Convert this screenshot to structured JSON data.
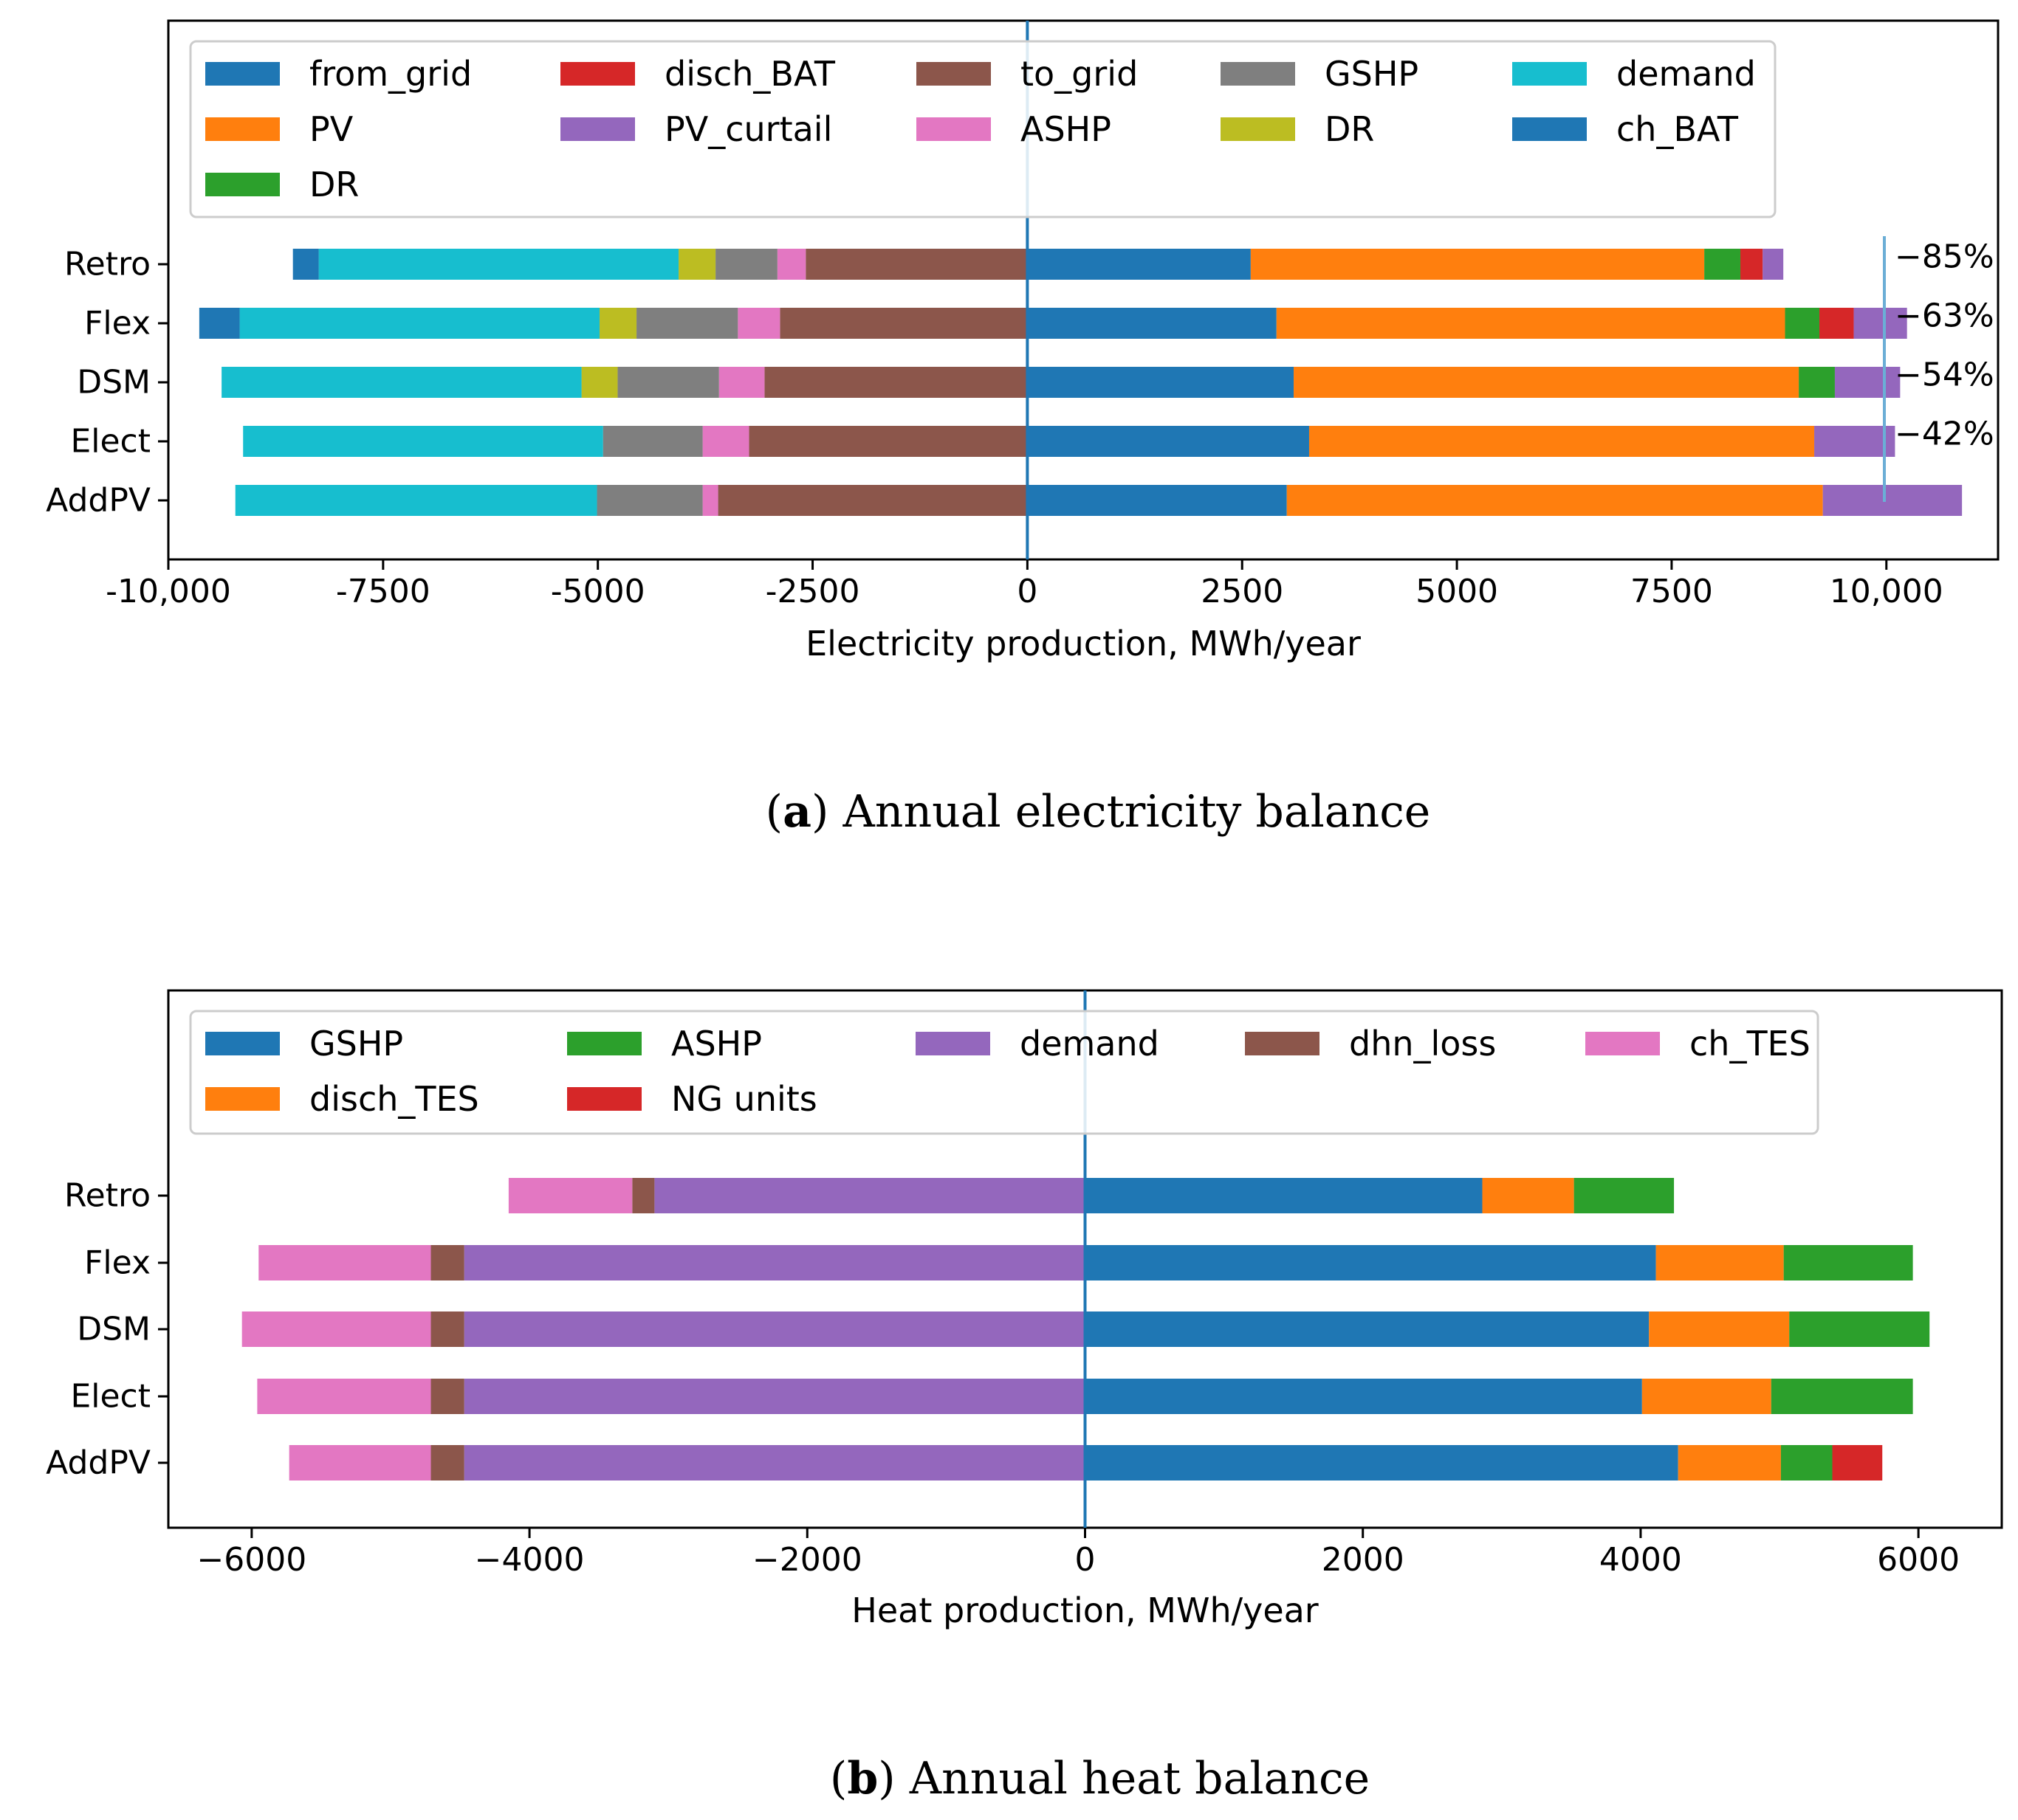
{
  "chart_data": [
    {
      "type": "bar",
      "orientation": "horizontal-stacked-diverging",
      "caption_label": "a",
      "caption_text": "Annual electricity balance",
      "xlabel": "Electricity production, MWh/year",
      "ylabel": "",
      "xlim": [
        -10000,
        11300
      ],
      "xticks": [
        -10000,
        -7500,
        -5000,
        -2500,
        0,
        2500,
        5000,
        7500,
        10000
      ],
      "xtick_labels": [
        "-10,000",
        "-7500",
        "-5000",
        "-2500",
        "0",
        "2500",
        "5000",
        "7500",
        "10,000"
      ],
      "categories": [
        "Retro",
        "Flex",
        "DSM",
        "Elect",
        "AddPV"
      ],
      "legend": [
        {
          "name": "from_grid",
          "color": "#1f77b4"
        },
        {
          "name": "discharge_BAT",
          "label": "disch_BAT",
          "color": "#d62728"
        },
        {
          "name": "to_grid",
          "color": "#8c564b"
        },
        {
          "name": "GSHP",
          "color": "#7f7f7f"
        },
        {
          "name": "demand",
          "color": "#17becf"
        },
        {
          "name": "PV",
          "color": "#ff7f0e"
        },
        {
          "name": "PV_curtail",
          "color": "#9467bd"
        },
        {
          "name": "ASHP",
          "color": "#e377c2"
        },
        {
          "name": "DR_neg",
          "label": "DR",
          "color": "#bcbd22"
        },
        {
          "name": "ch_BAT",
          "color": "#1f77b4"
        },
        {
          "name": "DR_pos",
          "label": "DR",
          "color": "#2ca02c"
        }
      ],
      "series_positive": [
        {
          "name": "from_grid",
          "color": "#1f77b4",
          "values": [
            2600,
            2900,
            3100,
            3280,
            3020
          ]
        },
        {
          "name": "PV",
          "color": "#ff7f0e",
          "values": [
            5280,
            5920,
            5880,
            5880,
            6240
          ]
        },
        {
          "name": "DR",
          "color": "#2ca02c",
          "values": [
            420,
            400,
            420,
            0,
            0
          ]
        },
        {
          "name": "disch_BAT",
          "color": "#d62728",
          "values": [
            260,
            400,
            0,
            0,
            0
          ]
        },
        {
          "name": "PV_curtail",
          "color": "#9467bd",
          "values": [
            240,
            620,
            760,
            940,
            1620
          ]
        }
      ],
      "series_negative": [
        {
          "name": "to_grid",
          "color": "#8c564b",
          "values": [
            -2580,
            -2880,
            -3060,
            -3240,
            -3600
          ]
        },
        {
          "name": "ASHP",
          "color": "#e377c2",
          "values": [
            -330,
            -490,
            -530,
            -540,
            -180
          ]
        },
        {
          "name": "GSHP",
          "color": "#7f7f7f",
          "values": [
            -720,
            -1180,
            -1180,
            -1160,
            -1230
          ]
        },
        {
          "name": "DR",
          "color": "#bcbd22",
          "values": [
            -430,
            -430,
            -420,
            0,
            0
          ]
        },
        {
          "name": "demand",
          "color": "#17becf",
          "values": [
            -4190,
            -4190,
            -4190,
            -4190,
            -4210
          ]
        },
        {
          "name": "ch_BAT",
          "color": "#1f77b4",
          "values": [
            -300,
            -470,
            0,
            0,
            0
          ]
        }
      ],
      "annotations": [
        {
          "category": "Retro",
          "text": "−85%"
        },
        {
          "category": "Flex",
          "text": "−63%"
        },
        {
          "category": "DSM",
          "text": "−54%"
        },
        {
          "category": "Elect",
          "text": "−42%"
        }
      ],
      "annotation_bracket_value": 10890,
      "vertical_line_at": 0
    },
    {
      "type": "bar",
      "orientation": "horizontal-stacked-diverging",
      "caption_label": "b",
      "caption_text": "Annual heat balance",
      "xlabel": "Heat production, MWh/year",
      "ylabel": "",
      "xlim": [
        -6600,
        6600
      ],
      "xticks": [
        -6000,
        -4000,
        -2000,
        0,
        2000,
        4000,
        6000
      ],
      "xtick_labels": [
        "−6000",
        "−4000",
        "−2000",
        "0",
        "2000",
        "4000",
        "6000"
      ],
      "categories": [
        "Retro",
        "Flex",
        "DSM",
        "Elect",
        "AddPV"
      ],
      "legend": [
        {
          "name": "GSHP",
          "color": "#1f77b4"
        },
        {
          "name": "ASHP",
          "color": "#2ca02c"
        },
        {
          "name": "demand",
          "color": "#9467bd"
        },
        {
          "name": "dhn_loss",
          "color": "#8c564b"
        },
        {
          "name": "ch_TES",
          "color": "#e377c2"
        },
        {
          "name": "disch_TES",
          "color": "#ff7f0e"
        },
        {
          "name": "NG units",
          "color": "#d62728"
        }
      ],
      "series_positive": [
        {
          "name": "GSHP",
          "color": "#1f77b4",
          "values": [
            2860,
            4110,
            4060,
            4010,
            4270
          ]
        },
        {
          "name": "disch_TES",
          "color": "#ff7f0e",
          "values": [
            660,
            920,
            1010,
            930,
            740
          ]
        },
        {
          "name": "ASHP",
          "color": "#2ca02c",
          "values": [
            720,
            930,
            1010,
            1020,
            370
          ]
        },
        {
          "name": "NG units",
          "color": "#d62728",
          "values": [
            0,
            0,
            0,
            0,
            360
          ]
        }
      ],
      "series_negative": [
        {
          "name": "demand",
          "color": "#9467bd",
          "values": [
            -3100,
            -4470,
            -4470,
            -4470,
            -4470
          ]
        },
        {
          "name": "dhn_loss",
          "color": "#8c564b",
          "values": [
            -160,
            -240,
            -240,
            -240,
            -240
          ]
        },
        {
          "name": "ch_TES",
          "color": "#e377c2",
          "values": [
            -890,
            -1240,
            -1360,
            -1250,
            -1020
          ]
        }
      ],
      "vertical_line_at": 0
    }
  ]
}
